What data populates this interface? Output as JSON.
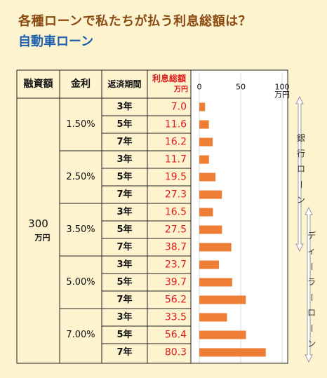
{
  "title": "各種ローンで私たちが払う利息総額は？",
  "subtitle": "自動車ローン",
  "colors": {
    "background": "#fdf3cf",
    "title": "#8a4a12",
    "subtitle": "#1f5fb0",
    "value_text": "#e01c1c",
    "bar": "#ee7d35",
    "grid": "#d8d8d8",
    "arrow": "#9a9a9a"
  },
  "table": {
    "headers": {
      "amount": "融資額",
      "rate": "金利",
      "period": "返済期間",
      "interest": "利息総額",
      "interest_unit": "万円"
    },
    "amount_value": "300",
    "amount_unit": "万円"
  },
  "annotations": {
    "bank_loan": "銀行ローン",
    "dealer_loan": "ディーラーローン"
  },
  "chart_data": {
    "type": "bar",
    "orientation": "horizontal",
    "title": "各種ローンで私たちが払う利息総額は？",
    "subtitle": "自動車ローン",
    "xlim": [
      0,
      100
    ],
    "xticks": [
      "0",
      "50",
      "100"
    ],
    "x_unit": "万円",
    "grid": true,
    "groups": [
      {
        "rate": "1.50%",
        "periods": [
          "3年",
          "5年",
          "7年"
        ],
        "labels": [
          "7.0",
          "11.6",
          "16.2"
        ],
        "values": [
          7.0,
          11.6,
          16.2
        ]
      },
      {
        "rate": "2.50%",
        "periods": [
          "3年",
          "5年",
          "7年"
        ],
        "labels": [
          "11.7",
          "19.5",
          "27.3"
        ],
        "values": [
          11.7,
          19.5,
          27.3
        ]
      },
      {
        "rate": "3.50%",
        "periods": [
          "3年",
          "5年",
          "7年"
        ],
        "labels": [
          "16.5",
          "27.5",
          "38.7"
        ],
        "values": [
          16.5,
          27.5,
          38.7
        ]
      },
      {
        "rate": "5.00%",
        "periods": [
          "3年",
          "5年",
          "7年"
        ],
        "labels": [
          "23.7",
          "39.7",
          "56.2"
        ],
        "values": [
          23.7,
          39.7,
          56.2
        ]
      },
      {
        "rate": "7.00%",
        "periods": [
          "3年",
          "5年",
          "7年"
        ],
        "labels": [
          "33.5",
          "56.4",
          "80.3"
        ],
        "values": [
          33.5,
          56.4,
          80.3
        ]
      }
    ]
  }
}
